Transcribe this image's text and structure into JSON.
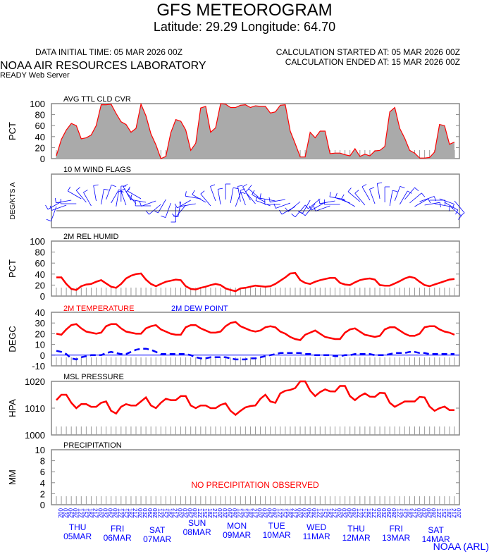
{
  "header": {
    "title": "GFS METEOROGRAM",
    "subtitle": "Latitude: 29.29 Longitude:  64.70",
    "initial_time": "DATA INITIAL TIME: 05 MAR 2026 00Z",
    "calc_started": "CALCULATION STARTED AT: 05 MAR 2026 00Z",
    "calc_ended": "CALCULATION ENDED AT: 15 MAR 2026 00Z",
    "org": "NOAA AIR RESOURCES LABORATORY",
    "server": "READY Web Server",
    "footer": "NOAA (ARL)"
  },
  "colors": {
    "red": "#ff0000",
    "blue": "#0000ff",
    "fill": "#aaaaaa"
  },
  "days": [
    {
      "dow": "THU",
      "date": "05MAR"
    },
    {
      "dow": "FRI",
      "date": "06MAR"
    },
    {
      "dow": "SAT",
      "date": "07MAR"
    },
    {
      "dow": "SUN",
      "date": "08MAR"
    },
    {
      "dow": "MON",
      "date": "09MAR"
    },
    {
      "dow": "TUE",
      "date": "10MAR"
    },
    {
      "dow": "WED",
      "date": "11MAR"
    },
    {
      "dow": "THU",
      "date": "12MAR"
    },
    {
      "dow": "FRI",
      "date": "13MAR"
    },
    {
      "dow": "SAT",
      "date": "14MAR"
    }
  ],
  "hour_labels": [
    "00Z",
    "03Z",
    "06Z",
    "09Z",
    "12Z",
    "15Z",
    "18Z",
    "21Z"
  ],
  "chart_data": [
    {
      "type": "area",
      "title": "AVG TTL CLD CVR",
      "ylabel": "PCT",
      "ylim": [
        0,
        100
      ],
      "yticks": [
        "0",
        "20",
        "40",
        "60",
        "80",
        "100"
      ],
      "values": [
        5,
        35,
        52,
        64,
        60,
        36,
        38,
        43,
        60,
        98,
        98,
        99,
        82,
        67,
        62,
        48,
        55,
        99,
        78,
        45,
        25,
        0,
        4,
        47,
        71,
        68,
        52,
        15,
        28,
        92,
        95,
        48,
        56,
        100,
        99,
        93,
        93,
        97,
        98,
        93,
        96,
        95,
        95,
        83,
        85,
        97,
        98,
        50,
        27,
        3,
        3,
        48,
        38,
        50,
        50,
        9,
        10,
        10,
        7,
        5,
        18,
        4,
        8,
        5,
        14,
        15,
        22,
        85,
        93,
        55,
        37,
        15,
        10,
        1,
        1,
        2,
        12,
        62,
        60,
        26,
        30
      ]
    },
    {
      "type": "wind",
      "title": "10 M  WIND FLAGS",
      "ylabel": "DEG/KTS  A",
      "directions": [
        200,
        240,
        250,
        260,
        270,
        300,
        320,
        330,
        350,
        10,
        20,
        30,
        10,
        0,
        340,
        330,
        320,
        300,
        280,
        270,
        250,
        230,
        210,
        200,
        180,
        190,
        220,
        240,
        260,
        280,
        300,
        320,
        340,
        350,
        0,
        10,
        20,
        350,
        340,
        330,
        320,
        310,
        300,
        290,
        280,
        270,
        260,
        250,
        240,
        230,
        220,
        210,
        220,
        230,
        240,
        250,
        260,
        270,
        280,
        290,
        300,
        310,
        320,
        330,
        340,
        350,
        0,
        10,
        20,
        30,
        40,
        50,
        60,
        70,
        80,
        90,
        100,
        110,
        120,
        130,
        140
      ]
    },
    {
      "type": "line",
      "title": "2M REL HUMID",
      "ylabel": "PCT",
      "ylim": [
        0,
        100
      ],
      "yticks": [
        "0",
        "20",
        "40",
        "60",
        "80",
        "100"
      ],
      "values": [
        34,
        34,
        22,
        13,
        11,
        18,
        21,
        22,
        26,
        29,
        23,
        17,
        15,
        22,
        32,
        37,
        40,
        41,
        30,
        22,
        18,
        22,
        26,
        28,
        30,
        29,
        18,
        13,
        12,
        15,
        17,
        20,
        22,
        20,
        14,
        11,
        9,
        14,
        15,
        17,
        19,
        18,
        17,
        18,
        22,
        28,
        34,
        41,
        42,
        29,
        24,
        22,
        26,
        29,
        31,
        33,
        33,
        24,
        21,
        20,
        25,
        29,
        31,
        32,
        30,
        20,
        19,
        19,
        23,
        27,
        32,
        35,
        33,
        26,
        20,
        18,
        21,
        24,
        27,
        30,
        31
      ]
    },
    {
      "type": "line",
      "ylabel": "DEGC",
      "ylim": [
        -10,
        40
      ],
      "yticks": [
        "-10",
        "0",
        "10",
        "20",
        "30",
        "40"
      ],
      "series": [
        {
          "name": "2M TEMPERATURE",
          "style": "solid",
          "values": [
            20,
            19,
            24,
            28,
            29,
            25,
            22,
            21,
            20,
            21,
            27,
            29,
            29,
            25,
            22,
            21,
            20,
            20,
            25,
            27,
            28,
            24,
            22,
            20,
            19,
            19,
            26,
            28,
            28,
            25,
            23,
            21,
            21,
            22,
            27,
            30,
            31,
            27,
            25,
            23,
            22,
            23,
            26,
            27,
            26,
            22,
            20,
            17,
            15,
            14,
            19,
            21,
            23,
            20,
            17,
            16,
            15,
            15,
            21,
            24,
            25,
            22,
            19,
            18,
            17,
            18,
            24,
            26,
            26,
            23,
            20,
            18,
            18,
            20,
            26,
            27,
            27,
            24,
            22,
            21,
            19
          ]
        },
        {
          "name": "2M   DEW POINT",
          "style": "dashed",
          "values": [
            4,
            3,
            1,
            -3,
            -4,
            -2,
            -1,
            0,
            0,
            0,
            2,
            3,
            2,
            1,
            1,
            3,
            5,
            6,
            6,
            5,
            3,
            1,
            1,
            1,
            1,
            1,
            1,
            0,
            -2,
            -3,
            -3,
            -2,
            -2,
            -2,
            -2,
            -3,
            -4,
            -4,
            -4,
            -3,
            -3,
            -2,
            -1,
            0,
            1,
            2,
            2,
            2,
            2,
            2,
            1,
            1,
            0,
            0,
            0,
            0,
            -1,
            -1,
            0,
            0,
            1,
            1,
            1,
            1,
            0,
            0,
            0,
            1,
            2,
            2,
            2,
            3,
            3,
            2,
            2,
            1,
            1,
            1,
            1,
            1,
            1
          ]
        }
      ]
    },
    {
      "type": "line",
      "title": "MSL PRESSURE",
      "ylabel": "HPA",
      "ylim": [
        1000,
        1020
      ],
      "yticks": [
        "1000",
        "1010",
        "1020"
      ],
      "values": [
        1013,
        1015,
        1015,
        1012,
        1010,
        1011.5,
        1011.5,
        1010.5,
        1010.5,
        1012,
        1012.5,
        1009,
        1008,
        1010.5,
        1011.5,
        1011,
        1011,
        1012.5,
        1014,
        1011,
        1010,
        1012,
        1013.5,
        1013,
        1013,
        1014.5,
        1014.5,
        1011,
        1010,
        1011,
        1011,
        1010,
        1010,
        1011.2,
        1011.8,
        1009,
        1007.5,
        1009,
        1010.3,
        1010.8,
        1011,
        1013.5,
        1015,
        1012.5,
        1012,
        1015.5,
        1016.5,
        1016.8,
        1017.5,
        1020,
        1020,
        1016.5,
        1014.5,
        1016,
        1017,
        1016.3,
        1016.2,
        1018.3,
        1018.3,
        1014.5,
        1013,
        1014.5,
        1015.5,
        1014.3,
        1014.2,
        1015.7,
        1015.6,
        1012,
        1010.5,
        1011.5,
        1012.5,
        1012.5,
        1012.5,
        1014.2,
        1014,
        1010.6,
        1009,
        1010,
        1010.6,
        1009.3,
        1009.3
      ]
    },
    {
      "type": "line",
      "title": "PRECIPITATION",
      "ylabel": "MM",
      "ylim": [
        0,
        10
      ],
      "yticks": [
        "0",
        "2",
        "4",
        "6",
        "8",
        "10"
      ],
      "values": [],
      "annotation": "NO PRECIPITATION OBSERVED"
    }
  ]
}
